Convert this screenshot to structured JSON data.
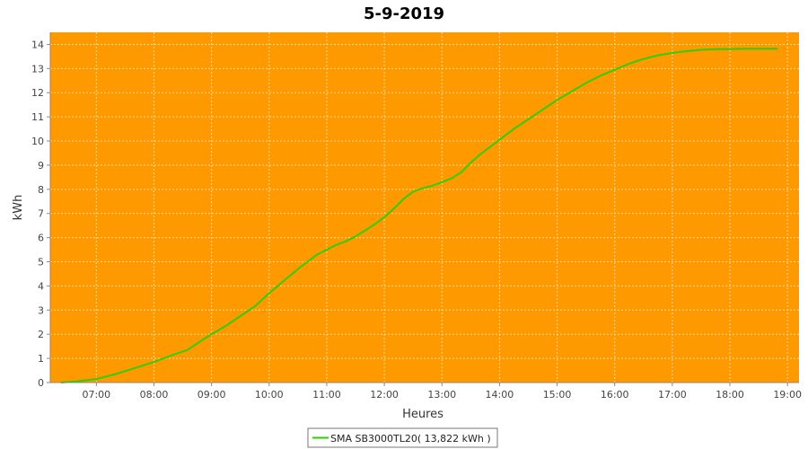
{
  "colors": {
    "plot_background": "#fe9900",
    "series_line": "#2fce00",
    "gridline": "#ffd9a0",
    "axis": "#888888"
  },
  "chart_data": {
    "type": "line",
    "title": "5-9-2019",
    "xlabel": "Heures",
    "ylabel": "kWh",
    "xlim": [
      "06:12",
      "19:12"
    ],
    "ylim": [
      0,
      14.5
    ],
    "x_ticks": [
      "07:00",
      "08:00",
      "09:00",
      "10:00",
      "11:00",
      "12:00",
      "13:00",
      "14:00",
      "15:00",
      "16:00",
      "17:00",
      "18:00",
      "19:00"
    ],
    "y_ticks": [
      0,
      1,
      2,
      3,
      4,
      5,
      6,
      7,
      8,
      9,
      10,
      11,
      12,
      13,
      14
    ],
    "grid": true,
    "legend_position": "bottom",
    "series": [
      {
        "name": "SMA SB3000TL20( 13,822 kWh )",
        "x": [
          "06:23",
          "06:40",
          "07:00",
          "07:20",
          "07:40",
          "08:00",
          "08:10",
          "08:20",
          "08:35",
          "08:50",
          "09:00",
          "09:15",
          "09:30",
          "09:45",
          "10:00",
          "10:15",
          "10:30",
          "10:40",
          "10:50",
          "11:00",
          "11:10",
          "11:20",
          "11:30",
          "11:40",
          "11:50",
          "12:00",
          "12:10",
          "12:20",
          "12:30",
          "12:40",
          "12:50",
          "13:00",
          "13:10",
          "13:20",
          "13:30",
          "13:40",
          "13:50",
          "14:00",
          "14:15",
          "14:30",
          "14:45",
          "15:00",
          "15:15",
          "15:30",
          "15:45",
          "16:00",
          "16:15",
          "16:30",
          "16:45",
          "17:00",
          "17:15",
          "17:30",
          "17:45",
          "18:00",
          "18:15",
          "18:30",
          "18:50"
        ],
        "y": [
          0.0,
          0.05,
          0.15,
          0.35,
          0.6,
          0.85,
          1.0,
          1.15,
          1.35,
          1.75,
          2.0,
          2.35,
          2.75,
          3.15,
          3.7,
          4.2,
          4.7,
          5.0,
          5.3,
          5.5,
          5.7,
          5.85,
          6.05,
          6.3,
          6.55,
          6.85,
          7.2,
          7.6,
          7.9,
          8.05,
          8.15,
          8.3,
          8.45,
          8.7,
          9.1,
          9.45,
          9.75,
          10.05,
          10.5,
          10.9,
          11.3,
          11.7,
          12.05,
          12.4,
          12.7,
          12.95,
          13.2,
          13.4,
          13.55,
          13.65,
          13.72,
          13.78,
          13.8,
          13.81,
          13.82,
          13.822,
          13.822
        ]
      }
    ]
  }
}
